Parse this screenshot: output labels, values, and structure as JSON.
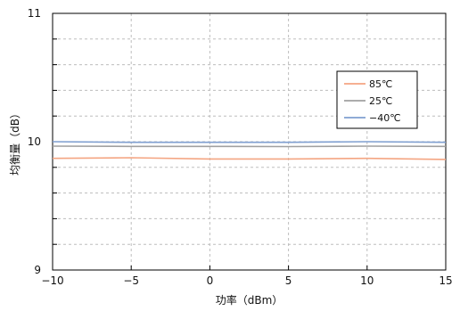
{
  "chart_data": {
    "type": "line",
    "xlabel": "功率（dBm）",
    "ylabel": "均衡量（dB）",
    "xlim": [
      -10,
      15
    ],
    "ylim": [
      9,
      11
    ],
    "xticks": [
      "−10",
      "−5",
      "0",
      "5",
      "10",
      "15"
    ],
    "yticks": [
      "9",
      "10",
      "11"
    ],
    "x": [
      -10,
      -5,
      0,
      5,
      10,
      15
    ],
    "grid": true,
    "legend_position": "right",
    "series": [
      {
        "name": "85℃",
        "color": "#f4a582",
        "values": [
          9.87,
          9.875,
          9.865,
          9.865,
          9.87,
          9.862
        ]
      },
      {
        "name": "25℃",
        "color": "#a0a0a0",
        "values": [
          9.965,
          9.963,
          9.963,
          9.962,
          9.965,
          9.963
        ]
      },
      {
        "name": "−40℃",
        "color": "#7f9fd0",
        "values": [
          10.0,
          9.995,
          9.995,
          9.995,
          10.0,
          9.995
        ]
      }
    ]
  }
}
